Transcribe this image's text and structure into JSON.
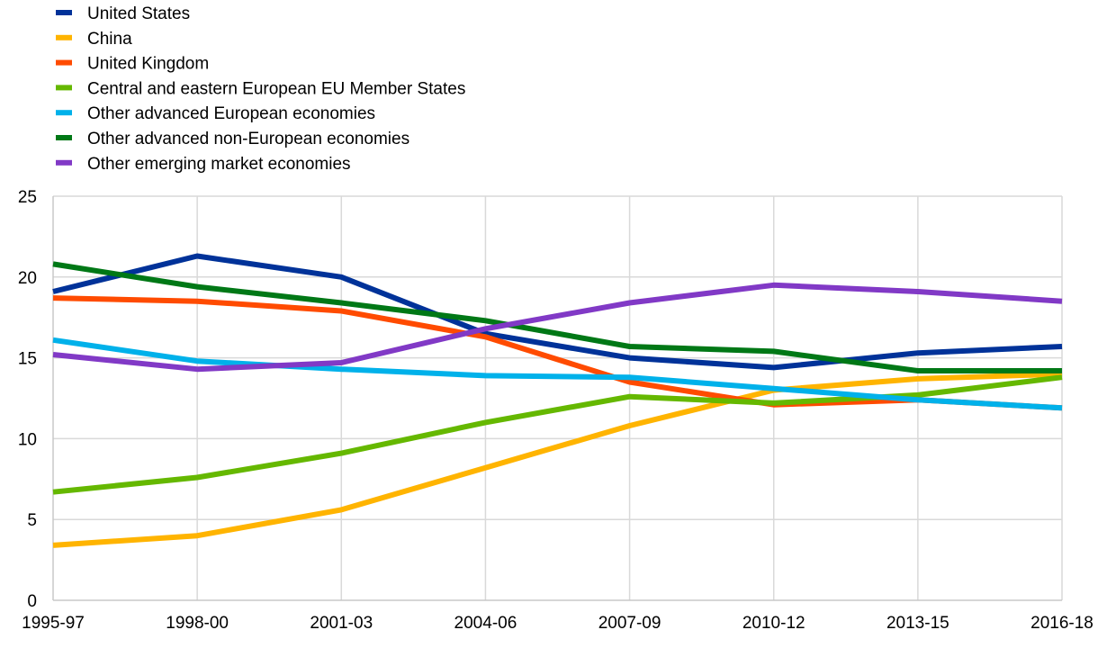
{
  "chart_data": {
    "type": "line",
    "title": "",
    "xlabel": "",
    "ylabel": "",
    "categories": [
      "1995-97",
      "1998-00",
      "2001-03",
      "2004-06",
      "2007-09",
      "2010-12",
      "2013-15",
      "2016-18"
    ],
    "ylim": [
      0,
      25
    ],
    "yticks": [
      0,
      5,
      10,
      15,
      20,
      25
    ],
    "grid": true,
    "legend_position": "top-left",
    "series": [
      {
        "name": "United States",
        "color": "#003299",
        "values": [
          19.1,
          21.3,
          20.0,
          16.5,
          15.0,
          14.4,
          15.3,
          15.7
        ]
      },
      {
        "name": "China",
        "color": "#FFB400",
        "values": [
          3.4,
          4.0,
          5.6,
          8.2,
          10.8,
          13.0,
          13.7,
          14.0
        ]
      },
      {
        "name": "United Kingdom",
        "color": "#FF4B00",
        "values": [
          18.7,
          18.5,
          17.9,
          16.3,
          13.5,
          12.1,
          12.4,
          11.9
        ]
      },
      {
        "name": "Central and eastern European EU Member States",
        "color": "#65B800",
        "values": [
          6.7,
          7.6,
          9.1,
          11.0,
          12.6,
          12.2,
          12.7,
          13.8
        ]
      },
      {
        "name": "Other advanced European economies",
        "color": "#00B1EA",
        "values": [
          16.1,
          14.8,
          14.3,
          13.9,
          13.8,
          13.1,
          12.4,
          11.9
        ]
      },
      {
        "name": "Other advanced non-European economies",
        "color": "#007816",
        "values": [
          20.8,
          19.4,
          18.4,
          17.3,
          15.7,
          15.4,
          14.2,
          14.2
        ]
      },
      {
        "name": "Other emerging market economies",
        "color": "#8139C6",
        "values": [
          15.2,
          14.3,
          14.7,
          16.8,
          18.4,
          19.5,
          19.1,
          18.5
        ]
      }
    ]
  }
}
